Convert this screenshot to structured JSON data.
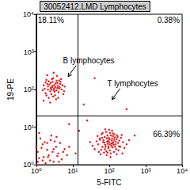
{
  "chart_data": {
    "type": "scatter",
    "title": "30052412.LMD Lymphocytes",
    "x_label": "5-FITC",
    "y_label": "19-PE",
    "log": true,
    "grid": false,
    "color": "#e41a1c",
    "marker": "circle",
    "xlim": [
      1,
      10000
    ],
    "ylim": [
      1,
      10000
    ],
    "xticks": [
      {
        "value": 1,
        "label": "10⁰"
      },
      {
        "value": 10,
        "label": "10¹"
      },
      {
        "value": 100,
        "label": "10²"
      },
      {
        "value": 1000,
        "label": "10³"
      },
      {
        "value": 10000,
        "label": "10⁴"
      }
    ],
    "yticks": [
      {
        "value": 1,
        "label": "10⁰"
      },
      {
        "value": 10,
        "label": "10¹"
      },
      {
        "value": 100,
        "label": "10²"
      },
      {
        "value": 1000,
        "label": "10³"
      },
      {
        "value": 10000,
        "label": "10⁴"
      }
    ],
    "quadrant_lines": {
      "x": 14,
      "y": 20
    },
    "quadrant_labels": {
      "upper left": "18.11%",
      "upper right": "0.38%",
      "lower right": "66.39%"
    },
    "annotations": [
      {
        "text": "B lymphocytes",
        "x": 7.5,
        "y": 220
      },
      {
        "text": "T lymphocytes",
        "x": 120,
        "y": 54
      }
    ],
    "x": [
      2.1,
      3.0,
      2.5,
      3.8,
      1.8,
      4.5,
      2.9,
      3.3,
      2.2,
      5.0,
      1.6,
      3.6,
      2.7,
      4.1,
      3.1,
      2.4,
      1.9,
      5.5,
      2.0,
      3.5,
      4.8,
      2.6,
      3.9,
      1.7,
      2.8,
      4.3,
      3.2,
      2.3,
      6.0,
      1.5,
      3.7,
      2.9,
      4.6,
      2.1,
      3.4,
      2.5,
      5.2,
      1.9,
      3.0,
      4.0,
      2.7,
      3.6,
      2.2,
      1.6,
      4.4,
      3.1,
      2.4,
      3.8,
      2.0,
      5.8,
      2.8,
      3.3,
      2.6,
      4.2,
      1.8,
      1.2,
      2.0,
      3.0,
      1.5,
      4.0,
      2.5,
      1.1,
      5.0,
      3.5,
      1.8,
      2.2,
      6.0,
      1.3,
      2.8,
      4.5,
      1.6,
      3.2,
      1.0,
      2.4,
      5.5,
      1.4,
      3.8,
      2.0,
      1.1,
      7.0,
      2.6,
      1.7,
      4.2,
      3.0,
      1.2,
      8.0,
      2.1,
      1.0,
      3.6,
      1.5,
      100,
      80,
      120,
      60,
      150,
      90,
      70,
      110,
      130,
      200,
      50,
      95,
      140,
      75,
      115,
      85,
      160,
      65,
      105,
      180,
      45,
      125,
      88,
      135,
      72,
      98,
      165,
      55,
      118,
      240,
      40,
      92,
      145,
      82,
      108,
      62,
      175,
      128,
      78,
      210,
      35,
      102,
      155,
      68,
      122,
      190,
      58,
      96,
      138,
      86,
      112,
      260,
      48,
      104,
      170,
      76,
      132,
      300,
      66,
      94,
      152,
      84,
      116,
      220,
      52,
      126,
      74,
      185,
      99,
      142,
      64,
      106,
      160,
      90,
      120,
      30,
      350,
      78,
      230,
      56,
      20,
      40,
      8,
      15,
      25,
      300,
      12,
      500
    ],
    "values": [
      120,
      95,
      150,
      110,
      80,
      140,
      200,
      70,
      60,
      100,
      130,
      170,
      115,
      85,
      130,
      90,
      180,
      75,
      240,
      55,
      190,
      75,
      125,
      105,
      160,
      105,
      88,
      135,
      120,
      95,
      230,
      65,
      160,
      100,
      145,
      110,
      130,
      70,
      280,
      60,
      190,
      95,
      165,
      50,
      115,
      105,
      45,
      150,
      140,
      90,
      125,
      115,
      100,
      175,
      155,
      1.5,
      2.5,
      1.2,
      3.5,
      2.0,
      4.5,
      2.2,
      1.4,
      3.0,
      1.1,
      1.8,
      2.6,
      5.0,
      2.2,
      3.8,
      1.6,
      4.2,
      3.0,
      1.3,
      2.2,
      2.8,
      1.7,
      3.8,
      1.2,
      1.8,
      6.0,
      4.0,
      1.2,
      2.6,
      7.0,
      3.0,
      1.6,
      1.0,
      5.5,
      1.3,
      4,
      3,
      5,
      2.5,
      3.5,
      6,
      4.5,
      2,
      4,
      3,
      3.5,
      2.8,
      6.5,
      5.5,
      3.2,
      1.8,
      4.8,
      3,
      7,
      2.4,
      4.2,
      3.8,
      4.1,
      2.2,
      2.1,
      5.2,
      6,
      5,
      4.4,
      4,
      2.6,
      3.6,
      3,
      7.5,
      1.6,
      6.5,
      3.8,
      5.8,
      3.4,
      5.2,
      3.2,
      4.7,
      2.6,
      4,
      2.9,
      4.4,
      1.9,
      3.1,
      4.6,
      5,
      6,
      2.8,
      5.8,
      2.4,
      5.5,
      2.6,
      3.4,
      3.5,
      7,
      4.3,
      4.1,
      2.3,
      3.7,
      6.2,
      2.2,
      6.8,
      3.9,
      3.1,
      8.5,
      5.3,
      5.2,
      3.5,
      1.9,
      2.1,
      8,
      4,
      4.5,
      8.8,
      2,
      4.6,
      40,
      200,
      12,
      8,
      15,
      30,
      2,
      6
    ]
  }
}
